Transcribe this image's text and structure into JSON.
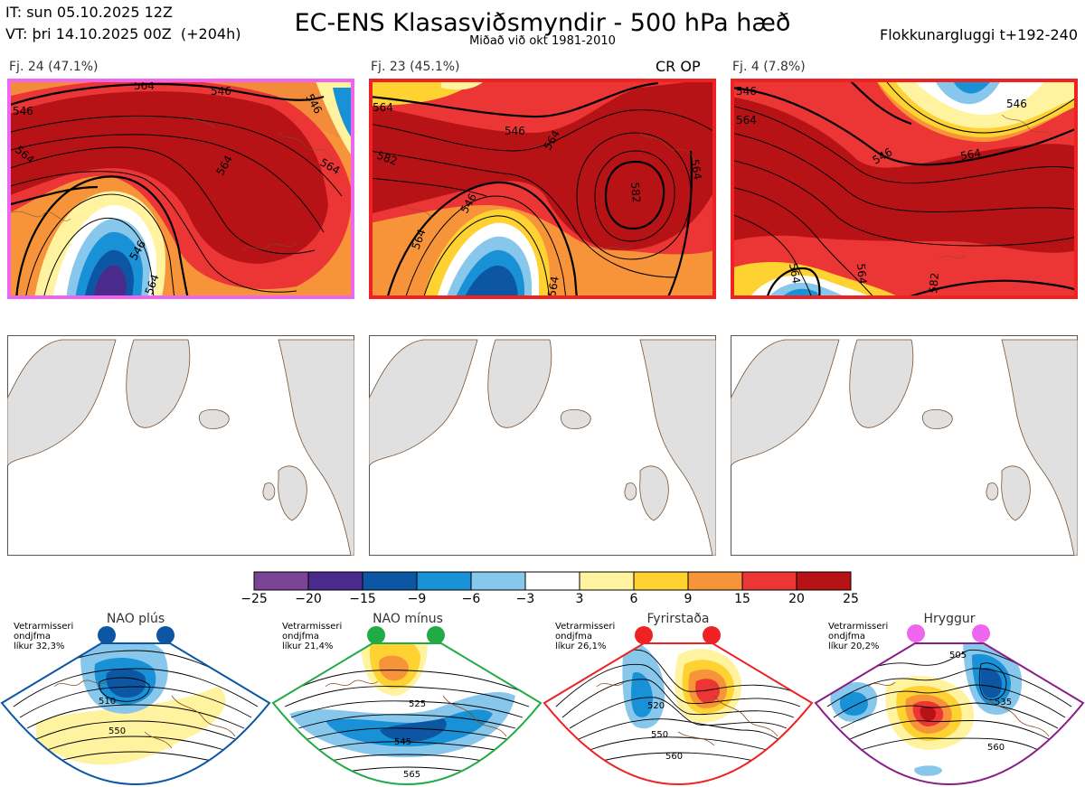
{
  "header": {
    "it_line": "IT: sun 05.10.2025 12Z",
    "vt_line": "VT: þri 14.10.2025 00Z  (+204h)",
    "title": "EC-ENS Klasasviðsmyndir - 500 hPa hæð",
    "subtitle": "Miðað við okt 1981-2010",
    "window": "Flokkunargluggi t+192-240"
  },
  "panels": [
    {
      "label": "Fj. 24 (47.1%)",
      "border_color": "#ee66ee",
      "contours": [
        "546",
        "546",
        "564",
        "564",
        "546",
        "564",
        "546",
        "564",
        "564"
      ]
    },
    {
      "label": "Fj. 23 (45.1%)",
      "border_color": "#ee2222",
      "contours": [
        "564",
        "546",
        "582",
        "564",
        "546",
        "564",
        "582",
        "564",
        "564"
      ]
    },
    {
      "label": "Fj. 4 (7.8%)",
      "border_color": "#ee2222",
      "contours": [
        "546",
        "564",
        "546",
        "564",
        "546",
        "564",
        "564",
        "582"
      ]
    }
  ],
  "cr_op": "CR OP",
  "colorbar": {
    "labels": [
      "−25",
      "−20",
      "−15",
      "−9",
      "−6",
      "−3",
      "3",
      "6",
      "9",
      "15",
      "20",
      "25"
    ],
    "colors": [
      "#7b4396",
      "#4a2a8c",
      "#0c56a3",
      "#1991d6",
      "#87c7ec",
      "#ffffff",
      "#fff3a0",
      "#fed230",
      "#f7943a",
      "#ec3535",
      "#b71316"
    ]
  },
  "regimes": [
    {
      "name": "NAO plús",
      "text": "Vetrarmisseri\nondjfma\nlíkur 32,3%",
      "color": "#0c56a3",
      "labels": [
        "510",
        "550"
      ]
    },
    {
      "name": "NAO mínus",
      "text": "Vetrarmisseri\nondjfma\nlíkur 21,4%",
      "color": "#22aa44",
      "labels": [
        "525",
        "545",
        "565"
      ]
    },
    {
      "name": "Fyrirstaða",
      "text": "Vetrarmisseri\nondjfma\nlíkur 26,1%",
      "color": "#ee2222",
      "labels": [
        "520",
        "550",
        "560"
      ]
    },
    {
      "name": "Hryggur",
      "text": "Vetrarmisseri\nondjfma\nlíkur 20,2%",
      "color": "#881e88",
      "labels": [
        "505",
        "535",
        "560"
      ]
    }
  ]
}
